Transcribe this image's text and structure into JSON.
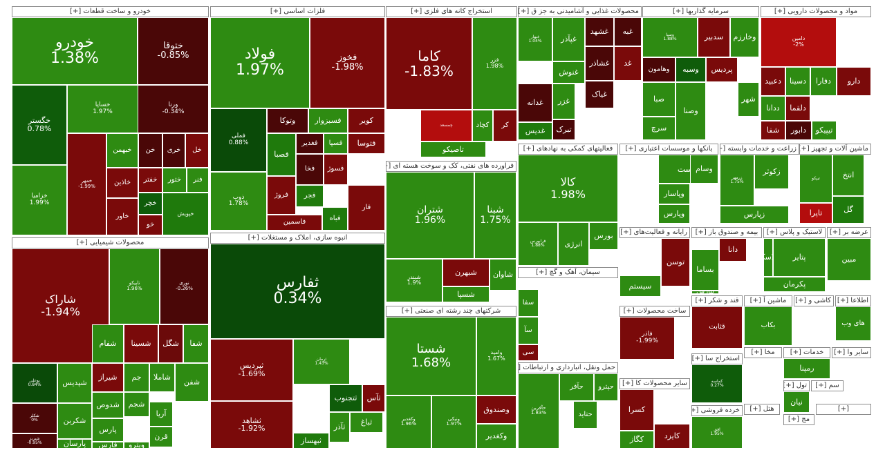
{
  "colors": {
    "green_bright": "#2e8b12",
    "green": "#1f7a0c",
    "green_dark": "#0f5c0a",
    "green_darkest": "#0a4a08",
    "red": "#7a0a0a",
    "red_dark": "#4a0707",
    "red_bright": "#b30d0d"
  },
  "sectors": [
    {
      "title": "خودرو و ساخت قطعات [+]",
      "tiles": [
        {
          "name": "خودرو",
          "change": "1.38%"
        },
        {
          "name": "ختوقا",
          "change": "-0.85%"
        },
        {
          "name": "خساپا",
          "change": "1.97%"
        },
        {
          "name": "ورنا",
          "change": "-0.34%"
        },
        {
          "name": "خگستر",
          "change": "0.78%"
        },
        {
          "name": "خزامیا",
          "change": "1.99%"
        },
        {
          "name": "خمهر",
          "change": "-1.99%"
        },
        {
          "name": "خبهمن",
          "change": ""
        },
        {
          "name": "خاذین",
          "change": ""
        },
        {
          "name": "خاور",
          "change": ""
        },
        {
          "name": "خن",
          "change": ""
        },
        {
          "name": "خری",
          "change": ""
        },
        {
          "name": "خل",
          "change": ""
        },
        {
          "name": "خفتر",
          "change": ""
        },
        {
          "name": "ختور",
          "change": ""
        },
        {
          "name": "فنر",
          "change": ""
        },
        {
          "name": "خچر",
          "change": ""
        },
        {
          "name": "خو",
          "change": ""
        },
        {
          "name": "خپویش",
          "change": ""
        }
      ]
    },
    {
      "title": "فلزات اساسی [+]",
      "tiles": [
        {
          "name": "فولاد",
          "change": "1.97%"
        },
        {
          "name": "فخوز",
          "change": "-1.98%"
        },
        {
          "name": "فملی",
          "change": "0.88%"
        },
        {
          "name": "ذوب",
          "change": "1.78%"
        },
        {
          "name": "وتوکا",
          "change": ""
        },
        {
          "name": "فسبزوار",
          "change": ""
        },
        {
          "name": "کویر",
          "change": ""
        },
        {
          "name": "فصبا",
          "change": ""
        },
        {
          "name": "فغدیر",
          "change": ""
        },
        {
          "name": "فسپا",
          "change": ""
        },
        {
          "name": "فتوسا",
          "change": ""
        },
        {
          "name": "فروژ",
          "change": ""
        },
        {
          "name": "فخا",
          "change": ""
        },
        {
          "name": "فسوژ",
          "change": ""
        },
        {
          "name": "فجر",
          "change": ""
        },
        {
          "name": "فاسمین",
          "change": ""
        },
        {
          "name": "فباه",
          "change": ""
        },
        {
          "name": "فار",
          "change": ""
        }
      ]
    },
    {
      "title": "استخراج کانه های فلزی [+]",
      "tiles": [
        {
          "name": "کاما",
          "change": "-1.83%"
        },
        {
          "name": "فزر",
          "change": "1.98%"
        },
        {
          "name": "کچاد",
          "change": ""
        },
        {
          "name": "کر",
          "change": ""
        },
        {
          "name": "تاصیکو",
          "change": ""
        },
        {
          "name": "چمسعد",
          "change": ""
        }
      ]
    },
    {
      "title": "فراورده های نفتی، کک و سوخت هسته ای [+]",
      "tiles": [
        {
          "name": "شتران",
          "change": "1.96%"
        },
        {
          "name": "شبنا",
          "change": "1.75%"
        },
        {
          "name": "شبندر",
          "change": "1.9%"
        },
        {
          "name": "شاوان",
          "change": ""
        },
        {
          "name": "شبهرن",
          "change": ""
        },
        {
          "name": "شسپا",
          "change": ""
        }
      ]
    },
    {
      "title": "شرکتهای چند رشته ای صنعتی [+]",
      "tiles": [
        {
          "name": "شستا",
          "change": "1.68%"
        },
        {
          "name": "وامید",
          "change": "1.67%"
        },
        {
          "name": "وصندوق",
          "change": ""
        },
        {
          "name": "ونیکی",
          "change": "1.97%"
        },
        {
          "name": "وکغدیر",
          "change": ""
        },
        {
          "name": "وکغدیر",
          "change": "1.96%"
        }
      ]
    },
    {
      "title": "محصولات غذایی و آشامیدنی به جز ق [+]",
      "tiles": [
        {
          "name": "غبهار",
          "change": "1.04%"
        },
        {
          "name": "غپآذر",
          "change": ""
        },
        {
          "name": "غشهد",
          "change": ""
        },
        {
          "name": "غبه",
          "change": ""
        },
        {
          "name": "غنوش",
          "change": ""
        },
        {
          "name": "غشاذر",
          "change": ""
        },
        {
          "name": "غد",
          "change": ""
        },
        {
          "name": "غدانه",
          "change": ""
        },
        {
          "name": "غزر",
          "change": ""
        },
        {
          "name": "غیاک",
          "change": ""
        },
        {
          "name": "غدیس",
          "change": ""
        },
        {
          "name": "تبرک",
          "change": ""
        }
      ]
    },
    {
      "title": "سرمایه گذاریها [+]",
      "tiles": [
        {
          "name": "وسپا",
          "change": "1.88%"
        },
        {
          "name": "سدبیر",
          "change": ""
        },
        {
          "name": "وخارزم",
          "change": ""
        },
        {
          "name": "وهامون",
          "change": ""
        },
        {
          "name": "وسبه",
          "change": ""
        },
        {
          "name": "پردیس",
          "change": ""
        },
        {
          "name": "صبا",
          "change": ""
        },
        {
          "name": "شهر",
          "change": ""
        },
        {
          "name": "سرچ",
          "change": ""
        },
        {
          "name": "وصنا",
          "change": ""
        }
      ]
    },
    {
      "title": "مواد و محصولات دارویی [+]",
      "tiles": [
        {
          "name": "دامین",
          "change": "-2%"
        },
        {
          "name": "دعبید",
          "change": ""
        },
        {
          "name": "دسینا",
          "change": ""
        },
        {
          "name": "دفارا",
          "change": ""
        },
        {
          "name": "دارو",
          "change": ""
        },
        {
          "name": "ددانا",
          "change": ""
        },
        {
          "name": "دلقما",
          "change": ""
        },
        {
          "name": "دابور",
          "change": ""
        },
        {
          "name": "شفا",
          "change": ""
        },
        {
          "name": "تیپیکو",
          "change": ""
        }
      ]
    },
    {
      "title": "فعالیتهای کمکی به نهادهای [+]",
      "tiles": [
        {
          "name": "کالا",
          "change": "1.98%"
        },
        {
          "name": "فرابورس",
          "change": "1.88%"
        },
        {
          "name": "انرژی",
          "change": ""
        },
        {
          "name": "بورس",
          "change": ""
        }
      ]
    },
    {
      "title": "بانکها و موسسات اعتباری [+]",
      "tiles": [
        {
          "name": "وپست",
          "change": ""
        },
        {
          "name": "وسام",
          "change": ""
        },
        {
          "name": "وپاسار",
          "change": ""
        },
        {
          "name": "وپارس",
          "change": ""
        },
        {
          "name": "وکار",
          "change": ""
        }
      ]
    },
    {
      "title": "زراعت و خدمات وابسته [+]",
      "tiles": [
        {
          "name": "زرمهر",
          "change": "1.75%"
        },
        {
          "name": "زکوثر",
          "change": ""
        },
        {
          "name": "زپارس",
          "change": ""
        }
      ]
    },
    {
      "title": "ماشین آلات و تجهیز [+]",
      "tiles": [
        {
          "name": "تیپکو",
          "change": ""
        },
        {
          "name": "انتخ",
          "change": ""
        },
        {
          "name": "گل",
          "change": ""
        },
        {
          "name": "تاپرا",
          "change": ""
        }
      ]
    },
    {
      "title": "محصولات شیمیایی [+]",
      "tiles": [
        {
          "name": "شاراک",
          "change": "-1.94%"
        },
        {
          "name": "تاپیکو",
          "change": "1.96%"
        },
        {
          "name": "نوری",
          "change": "-0.26%"
        },
        {
          "name": "بوعلی",
          "change": "0.84%"
        },
        {
          "name": "شپدیس",
          "change": ""
        },
        {
          "name": "شفام",
          "change": ""
        },
        {
          "name": "شسینا",
          "change": ""
        },
        {
          "name": "شگل",
          "change": ""
        },
        {
          "name": "شفا",
          "change": ""
        },
        {
          "name": "شیراز",
          "change": ""
        },
        {
          "name": "جم",
          "change": ""
        },
        {
          "name": "شاملا",
          "change": ""
        },
        {
          "name": "شفن",
          "change": ""
        },
        {
          "name": "شکربن",
          "change": ""
        },
        {
          "name": "شدوص",
          "change": ""
        },
        {
          "name": "شجم",
          "change": ""
        },
        {
          "name": "پارس",
          "change": ""
        },
        {
          "name": "آریا",
          "change": ""
        },
        {
          "name": "قرن",
          "change": ""
        },
        {
          "name": "پارسان",
          "change": ""
        },
        {
          "name": "فارس",
          "change": ""
        },
        {
          "name": "ویترو",
          "change": ""
        },
        {
          "name": "شکلر",
          "change": "0%"
        },
        {
          "name": "شبریز",
          "change": "-0.95%"
        }
      ]
    },
    {
      "title": "انبوه سازی، املاک و مستغلات [+]",
      "tiles": [
        {
          "name": "ثفارس",
          "change": "0.34%"
        },
        {
          "name": "ثپردیس",
          "change": "-1.69%"
        },
        {
          "name": "ثشاهد",
          "change": "-1.92%"
        },
        {
          "name": "ثرمان",
          "change": "1.43%"
        },
        {
          "name": "ثتجنوب",
          "change": ""
        },
        {
          "name": "ثآس",
          "change": ""
        },
        {
          "name": "ثباغ",
          "change": ""
        },
        {
          "name": "ثآذر",
          "change": ""
        },
        {
          "name": "ثبهساز",
          "change": ""
        }
      ]
    },
    {
      "title": "سیمان، آهک و گچ [+]",
      "tiles": [
        {
          "name": "سفا",
          "change": ""
        },
        {
          "name": "سآ",
          "change": ""
        },
        {
          "name": "سی",
          "change": ""
        }
      ]
    },
    {
      "title": "حمل ونقل، انبارداری و ارتباطات [+]",
      "tiles": [
        {
          "name": "حآفرین",
          "change": "1.83%"
        },
        {
          "name": "حآفر",
          "change": ""
        },
        {
          "name": "حپترو",
          "change": ""
        },
        {
          "name": "حتاید",
          "change": ""
        }
      ]
    },
    {
      "title": "رایانه و فعالیت‌های [+]",
      "tiles": [
        {
          "name": "سیستم",
          "change": ""
        },
        {
          "name": "توسن",
          "change": ""
        }
      ]
    },
    {
      "title": "بیمه و صندوق باز [+]",
      "tiles": [
        {
          "name": "بساما",
          "change": ""
        },
        {
          "name": "دانا",
          "change": ""
        },
        {
          "name": "بپارس",
          "change": ""
        }
      ]
    },
    {
      "title": "لاستیک و پلاس [+]",
      "tiles": [
        {
          "name": "پتایر",
          "change": ""
        },
        {
          "name": "پکرمان",
          "change": ""
        },
        {
          "name": "پلاسک",
          "change": ""
        }
      ]
    },
    {
      "title": "عرضه بر [+]",
      "tiles": [
        {
          "name": "مبین",
          "change": ""
        }
      ]
    },
    {
      "title": "ساخت محصولات [+]",
      "tiles": [
        {
          "name": "فاذر",
          "change": "-1.99%"
        }
      ]
    },
    {
      "title": "قند و شکر [+]",
      "tiles": [
        {
          "name": "قثابت",
          "change": ""
        }
      ]
    },
    {
      "title": "ماشین آ [+]",
      "tiles": [
        {
          "name": "بکاب",
          "change": ""
        }
      ]
    },
    {
      "title": "کاشی و [+]",
      "tiles": []
    },
    {
      "title": "اطلاعا [+]",
      "tiles": [
        {
          "name": "های وب",
          "change": ""
        }
      ]
    },
    {
      "title": "استخراج سا [+]",
      "tiles": [
        {
          "name": "کماسه",
          "change": "0.27%"
        }
      ]
    },
    {
      "title": "سایر محصولات کا [+]",
      "tiles": [
        {
          "name": "کسرا",
          "change": ""
        },
        {
          "name": "کگاز",
          "change": ""
        },
        {
          "name": "کایزد",
          "change": ""
        }
      ]
    },
    {
      "title": "خرده فروشی [+]",
      "tiles": [
        {
          "name": "افق",
          "change": "1.95%"
        }
      ]
    },
    {
      "title": "خدمات [+]",
      "tiles": [
        {
          "name": "رمپنا",
          "change": ""
        }
      ]
    },
    {
      "title": "هتل [+]",
      "tiles": []
    },
    {
      "title": "سایر وا [+]",
      "tiles": []
    },
    {
      "title": "تول [+]",
      "tiles": [
        {
          "name": "نیان",
          "change": ""
        }
      ]
    },
    {
      "title": "سم [+]",
      "tiles": []
    },
    {
      "title": "مخا [+]",
      "tiles": []
    },
    {
      "title": "مج [+]",
      "tiles": []
    },
    {
      "title": "[+]",
      "tiles": []
    }
  ]
}
